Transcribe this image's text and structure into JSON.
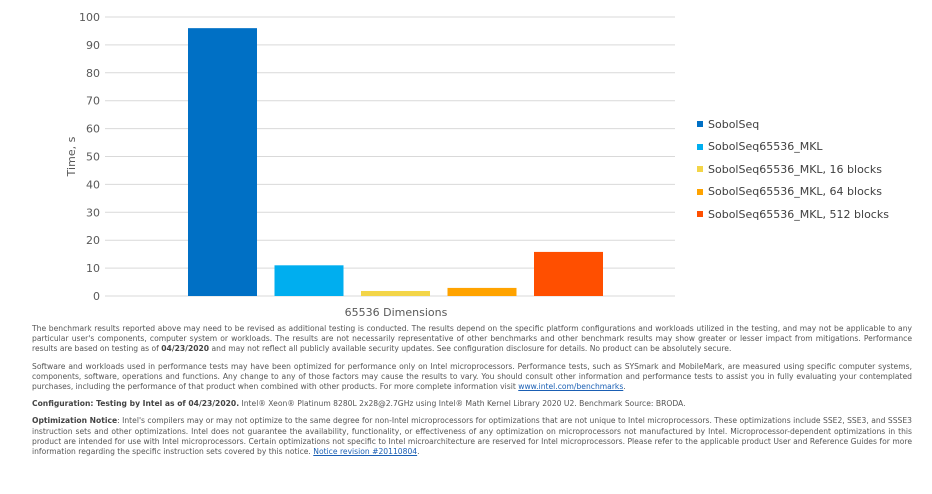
{
  "chart_data": {
    "type": "bar",
    "title": "",
    "xlabel": "65536 Dimensions",
    "ylabel": "Time, s",
    "ylim": [
      0,
      100
    ],
    "yticks": [
      0,
      10,
      20,
      30,
      40,
      50,
      60,
      70,
      80,
      90,
      100
    ],
    "grid": true,
    "legend_placement": "right",
    "categories": [
      "65536 Dimensions"
    ],
    "series": [
      {
        "name": "SobolSeq",
        "values": [
          96
        ],
        "color": "#0070c5"
      },
      {
        "name": "SobolSeq65536_MKL",
        "values": [
          11
        ],
        "color": "#00aeef"
      },
      {
        "name": "SobolSeq65536_MKL, 16 blocks",
        "values": [
          1.8
        ],
        "color": "#f3d548"
      },
      {
        "name": "SobolSeq65536_MKL, 64 blocks",
        "values": [
          2.9
        ],
        "color": "#ffa300"
      },
      {
        "name": "SobolSeq65536_MKL, 512 blocks",
        "values": [
          15.8
        ],
        "color": "#ff4f00"
      }
    ]
  },
  "notes": {
    "p1_a": "The benchmark results reported above may need to be revised as additional testing is conducted. The results depend on the specific platform configurations and workloads utilized in the testing, and may not be applicable to any particular user's components, computer system or workloads. The results are not necessarily representative of other benchmarks and other benchmark results may show greater or lesser impact from mitigations. Performance results are based on testing as of ",
    "p1_date": "04/23/2020",
    "p1_b": " and may not reflect all publicly available security updates. See configuration disclosure for details. No product can be absolutely secure.",
    "p2": "Software and workloads used in performance tests may have been optimized for performance only on Intel microprocessors. Performance tests, such as SYSmark and MobileMark, are measured using specific computer systems, components, software, operations and functions. Any change to any of those factors may cause the results to vary. You should consult other information and performance tests to assist you in fully evaluating your contemplated purchases, including the performance of that product when combined with other products. For more complete information visit ",
    "p2_link": "www.intel.com/benchmarks",
    "p3_bold": "Configuration: Testing by Intel as of 04/23/2020.",
    "p3": " Intel® Xeon® Platinum 8280L 2x28@2.7GHz using Intel® Math Kernel Library 2020 U2. Benchmark Source: BRODA.",
    "p4_bold": "Optimization Notice",
    "p4": ": Intel's compilers may or may not optimize to the same degree for non-Intel microprocessors for optimizations that are not unique to Intel microprocessors. These optimizations include SSE2, SSE3, and SSSE3 instruction sets and other optimizations. Intel does not guarantee the availability, functionality, or effectiveness of any optimization on microprocessors not manufactured by Intel. Microprocessor-dependent optimizations in this product are intended for use with Intel microprocessors. Certain optimizations not specific to Intel microarchitecture are reserved for Intel microprocessors. Please refer to the applicable product User and Reference Guides for more information regarding the specific instruction sets covered by this notice. ",
    "p4_link": "Notice revision #20110804"
  }
}
